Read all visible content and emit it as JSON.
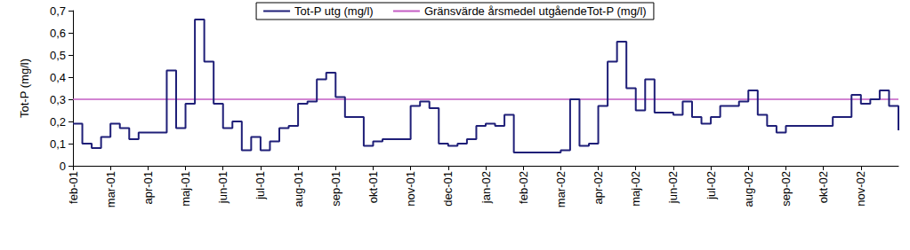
{
  "chart_data": {
    "type": "line",
    "y_label": "Tot-P (mg/l)",
    "categories": [
      "feb-01",
      null,
      null,
      null,
      "mar-01",
      null,
      null,
      null,
      "apr-01",
      null,
      null,
      null,
      "maj-01",
      null,
      null,
      null,
      "jun-01",
      null,
      null,
      null,
      "jul-01",
      null,
      null,
      null,
      "aug-01",
      null,
      null,
      null,
      "sep-01",
      null,
      null,
      null,
      "okt-01",
      null,
      null,
      null,
      "nov-01",
      null,
      null,
      null,
      "dec-01",
      null,
      null,
      null,
      "jan-02",
      null,
      null,
      null,
      "feb-02",
      null,
      null,
      null,
      "mar-02",
      null,
      null,
      null,
      "apr-02",
      null,
      null,
      null,
      "maj-02",
      null,
      null,
      null,
      "jun-02",
      null,
      null,
      null,
      "jul-02",
      null,
      null,
      null,
      "aug-02",
      null,
      null,
      null,
      "sep-02",
      null,
      null,
      null,
      "okt-02",
      null,
      null,
      null,
      "nov-02",
      null,
      null,
      null,
      null
    ],
    "series": [
      {
        "name": "Tot-P utg (mg/l)",
        "color": "#1f1f78",
        "marker": "none",
        "line_style": "step",
        "values": [
          0.19,
          0.1,
          0.08,
          0.13,
          0.19,
          0.17,
          0.12,
          0.15,
          0.15,
          0.15,
          0.43,
          0.17,
          0.28,
          0.66,
          0.47,
          0.28,
          0.17,
          0.2,
          0.07,
          0.13,
          0.07,
          0.11,
          0.17,
          0.18,
          0.28,
          0.29,
          0.39,
          0.42,
          0.31,
          0.22,
          0.22,
          0.09,
          0.11,
          0.12,
          0.12,
          0.12,
          0.27,
          0.29,
          0.26,
          0.1,
          0.09,
          0.1,
          0.12,
          0.18,
          0.19,
          0.18,
          0.23,
          0.06,
          0.06,
          0.06,
          0.06,
          0.06,
          0.07,
          0.3,
          0.09,
          0.1,
          0.27,
          0.47,
          0.56,
          0.35,
          0.25,
          0.39,
          0.24,
          0.24,
          0.23,
          0.29,
          0.22,
          0.19,
          0.22,
          0.27,
          0.27,
          0.29,
          0.34,
          0.23,
          0.18,
          0.15,
          0.18,
          0.18,
          0.18,
          0.18,
          0.18,
          0.22,
          0.22,
          0.32,
          0.28,
          0.3,
          0.34,
          0.27,
          0.16
        ]
      },
      {
        "name": "Gränsvärde årsmedel utgåendeTot-P (mg/l)",
        "color": "#c45cc4",
        "marker": "none",
        "line_style": "solid",
        "values": [
          0.3,
          0.3,
          0.3,
          0.3,
          0.3,
          0.3,
          0.3,
          0.3,
          0.3,
          0.3,
          0.3,
          0.3,
          0.3,
          0.3,
          0.3,
          0.3,
          0.3,
          0.3,
          0.3,
          0.3,
          0.3,
          0.3,
          0.3,
          0.3,
          0.3,
          0.3,
          0.3,
          0.3,
          0.3,
          0.3,
          0.3,
          0.3,
          0.3,
          0.3,
          0.3,
          0.3,
          0.3,
          0.3,
          0.3,
          0.3,
          0.3,
          0.3,
          0.3,
          0.3,
          0.3,
          0.3,
          0.3,
          0.3,
          0.3,
          0.3,
          0.3,
          0.3,
          0.3,
          0.3,
          0.3,
          0.3,
          0.3,
          0.3,
          0.3,
          0.3,
          0.3,
          0.3,
          0.3,
          0.3,
          0.3,
          0.3,
          0.3,
          0.3,
          0.3,
          0.3,
          0.3,
          0.3,
          0.3,
          0.3,
          0.3,
          0.3,
          0.3,
          0.3,
          0.3,
          0.3,
          0.3,
          0.3,
          0.3,
          0.3,
          0.3,
          0.3,
          0.3,
          0.3,
          0.3
        ]
      }
    ],
    "ylim": [
      0,
      0.7
    ],
    "yticks": [
      0,
      {
        "value": 0.1,
        "label": "0,1"
      },
      {
        "value": 0.2,
        "label": "0,2"
      },
      {
        "value": 0.3,
        "label": "0,3"
      },
      {
        "value": 0.4,
        "label": "0,4"
      },
      {
        "value": 0.5,
        "label": "0,5"
      },
      {
        "value": 0.6,
        "label": "0,6"
      },
      {
        "value": 0.7,
        "label": "0,7"
      }
    ],
    "grid": false,
    "legend": "top"
  }
}
